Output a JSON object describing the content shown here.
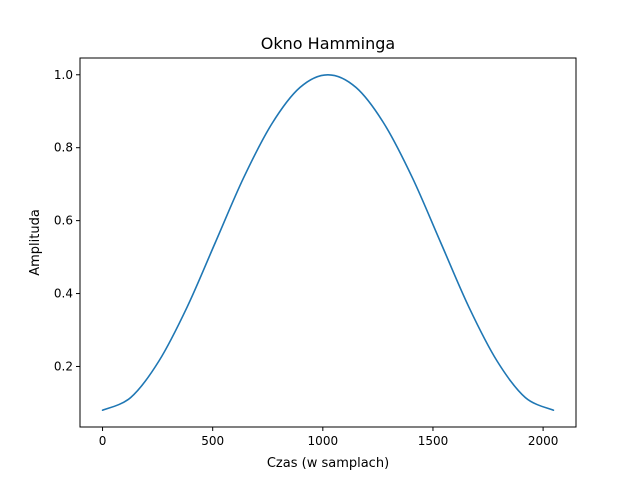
{
  "chart_data": {
    "type": "line",
    "title": "Okno Hamminga",
    "xlabel": "Czas (w samplach)",
    "ylabel": "Amplituda",
    "xlim": [
      -102.35,
      2149.35
    ],
    "ylim": [
      0.034,
      1.046
    ],
    "xticks": [
      0,
      500,
      1000,
      1500,
      2000
    ],
    "yticks": [
      0.2,
      0.4,
      0.6,
      0.8,
      1.0
    ],
    "xtick_labels": [
      "0",
      "500",
      "1000",
      "1500",
      "2000"
    ],
    "ytick_labels": [
      "0.2",
      "0.4",
      "0.6",
      "0.8",
      "1.0"
    ],
    "grid": false,
    "series": [
      {
        "color": "#1f77b4",
        "x": [
          0,
          128,
          256,
          384,
          512,
          640,
          768,
          896,
          1023,
          1151,
          1279,
          1407,
          1535,
          1663,
          1791,
          1919,
          2047
        ],
        "y": [
          0.08,
          0.115,
          0.215,
          0.363,
          0.54,
          0.717,
          0.865,
          0.965,
          1.0,
          0.965,
          0.865,
          0.717,
          0.54,
          0.363,
          0.215,
          0.115,
          0.08
        ]
      }
    ]
  }
}
